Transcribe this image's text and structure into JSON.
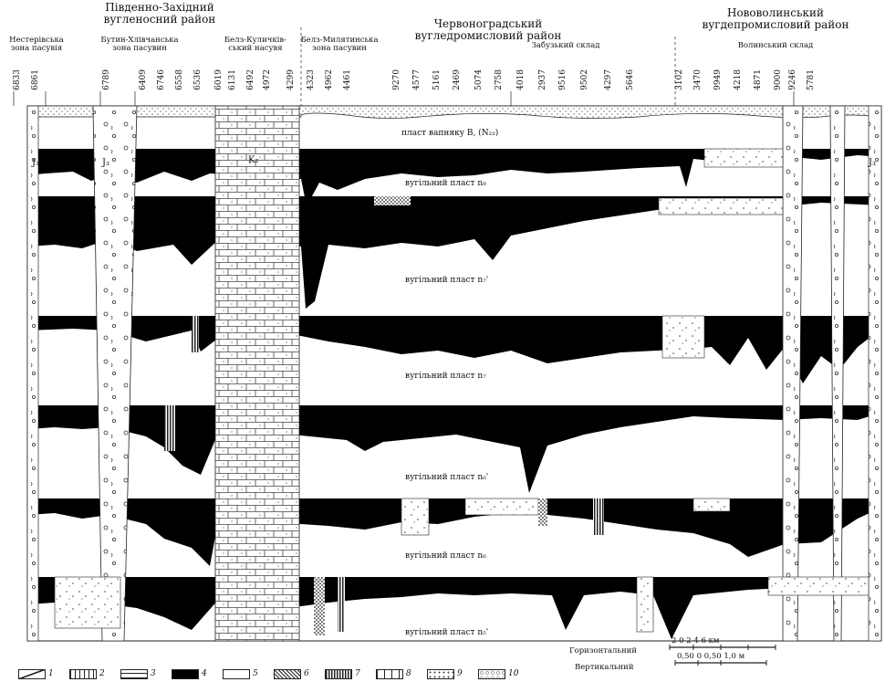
{
  "regions": [
    {
      "line1": "Південно-Західний",
      "line2": "вугленосний район"
    },
    {
      "line1": "Червоноградський",
      "line2": "вугледромисловий район"
    },
    {
      "line1": "Нововолинський",
      "line2": "вугдепромисловий район"
    }
  ],
  "subregions": [
    {
      "line1": "Нестерівська",
      "line2": "зона пасувія"
    },
    {
      "line1": "Бутин-Хлівчанська",
      "line2": "зона пасувин"
    },
    {
      "line1": "Белз-Куличків-",
      "line2": "ський насувя"
    },
    {
      "line1": "Белз-Милятинська",
      "line2": "зона пасувин"
    },
    {
      "line1": "Забузький склад",
      "line2": ""
    },
    {
      "line1": "Волинський склад",
      "line2": ""
    }
  ],
  "boreholes": [
    "6833",
    "6861",
    "6789",
    "6409",
    "6746",
    "6558",
    "6536",
    "6019",
    "6131",
    "6492",
    "4972",
    "4299",
    "4323",
    "4962",
    "4461",
    "9270",
    "4577",
    "5161",
    "2469",
    "5074",
    "2758",
    "4018",
    "2937",
    "9516",
    "9502",
    "4297",
    "5646",
    "3102",
    "3470",
    "9949",
    "4218",
    "4871",
    "9000",
    "9246",
    "5781"
  ],
  "seams": {
    "top": "пласт вапняку B, (N₂₃)",
    "s1": "вугільний пласт n₈",
    "s2": "вугільний пласт n₇'",
    "s3": "вугільний пласт n₇",
    "s4": "вугільний пласт n₆'",
    "s5": "вугільний пласт n₆",
    "s6": "вугільний пласт n₅'"
  },
  "letters": {
    "j_left": "J₃",
    "j_mid": "J₃",
    "k": "K₂",
    "j_right": "J₃"
  },
  "scale": {
    "horizontal_label": "Горизонтальний",
    "vertical_label": "Вертикальний",
    "h_ticks": "2    0     2    4    6 км",
    "v_ticks": "0,50  0   0,50  1,0 м"
  },
  "legend": [
    "1",
    "2",
    "3",
    "4",
    "5",
    "6",
    "7",
    "8",
    "9",
    "10"
  ]
}
